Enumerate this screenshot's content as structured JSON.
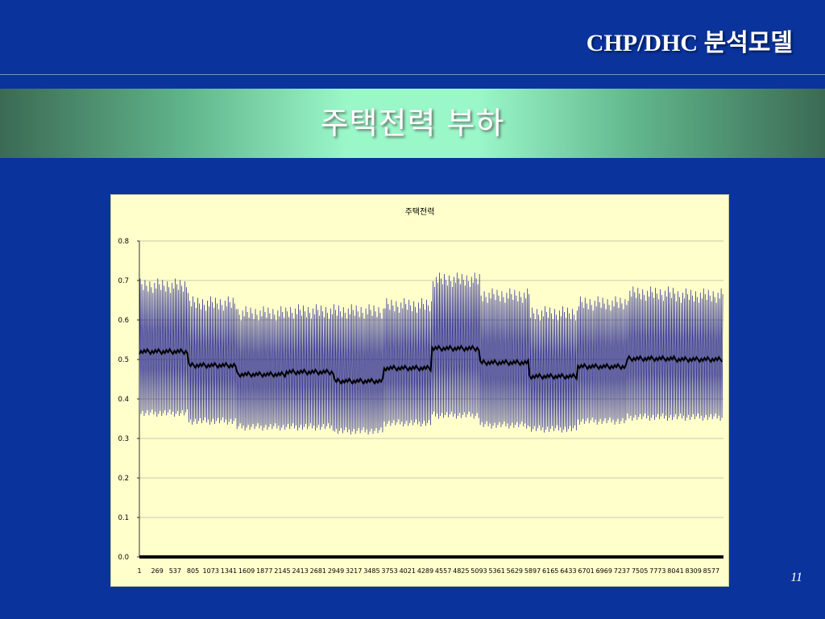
{
  "slide": {
    "header_title": "CHP/DHC 분석모델",
    "banner_title": "주택전력 부하",
    "page_number": "11"
  },
  "colors": {
    "background": "#0a339b",
    "chart_bg": "#ffffcc",
    "series_raw": "#1f1f8f",
    "series_avg": "#000000"
  },
  "chart_data": {
    "type": "line",
    "title": "주택전력",
    "xlabel": "",
    "ylabel": "",
    "x_range": [
      1,
      8760
    ],
    "ylim": [
      0,
      0.8
    ],
    "y_ticks": [
      "0.0",
      "0.1",
      "0.2",
      "0.3",
      "0.4",
      "0.5",
      "0.6",
      "0.7",
      "0.8"
    ],
    "x_tick_labels": [
      "1",
      "269",
      "537",
      "805",
      "1073",
      "1341",
      "1609",
      "1877",
      "2145",
      "2413",
      "2681",
      "2949",
      "3217",
      "3485",
      "3753",
      "4021",
      "4289",
      "4557",
      "4825",
      "5093",
      "5361",
      "5629",
      "5897",
      "6165",
      "6433",
      "6701",
      "6969",
      "7237",
      "7505",
      "7773",
      "8041",
      "8309",
      "8577"
    ],
    "grid": true,
    "legend": "none",
    "series": [
      {
        "values_description": "hourly load oscillating daily between monthly min and max",
        "monthly_min": [
          0.355,
          0.335,
          0.32,
          0.32,
          0.31,
          0.33,
          0.35,
          0.325,
          0.315,
          0.335,
          0.345,
          0.345
        ],
        "monthly_max": [
          0.705,
          0.66,
          0.635,
          0.64,
          0.64,
          0.655,
          0.72,
          0.68,
          0.635,
          0.66,
          0.685,
          0.68
        ],
        "monthly_avg": [
          0.52,
          0.485,
          0.462,
          0.468,
          0.445,
          0.478,
          0.528,
          0.492,
          0.457,
          0.482,
          0.502,
          0.5
        ]
      },
      {
        "values_description": "daily average load",
        "monthly_avg": [
          0.52,
          0.485,
          0.462,
          0.468,
          0.445,
          0.478,
          0.528,
          0.492,
          0.457,
          0.482,
          0.502,
          0.5
        ]
      },
      {
        "values_description": "zero baseline",
        "constant": 0.0
      }
    ]
  }
}
